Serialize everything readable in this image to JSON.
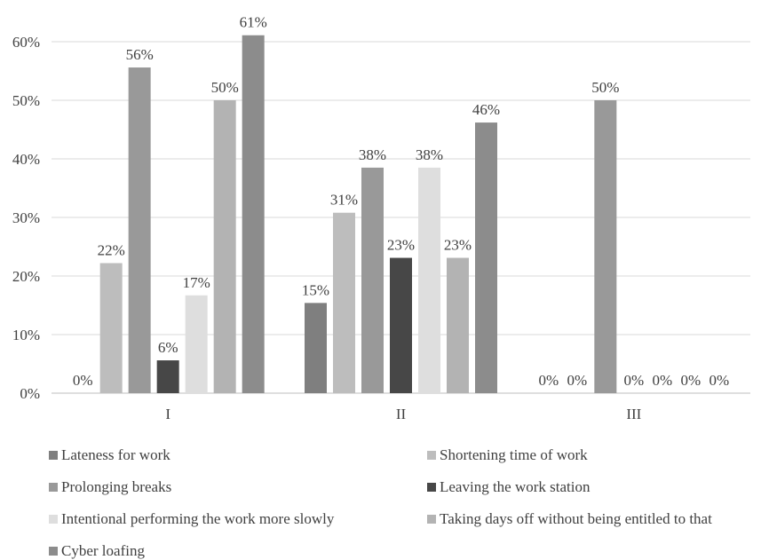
{
  "chart_data": {
    "type": "bar",
    "categories": [
      "I",
      "II",
      "III"
    ],
    "ylim": [
      0,
      60
    ],
    "yticks": [
      0,
      10,
      20,
      30,
      40,
      50,
      60
    ],
    "ytick_labels": [
      "0%",
      "10%",
      "20%",
      "30%",
      "40%",
      "50%",
      "60%"
    ],
    "grid": true,
    "legend_position": "bottom",
    "series": [
      {
        "name": "Lateness for work",
        "color": "#7f7f7f",
        "values": [
          0,
          15.4,
          0
        ],
        "labels": [
          "0%",
          "15%",
          "0%"
        ]
      },
      {
        "name": "Shortening time of work",
        "color": "#bdbdbd",
        "values": [
          22.2,
          30.8,
          0
        ],
        "labels": [
          "22%",
          "31%",
          "0%"
        ]
      },
      {
        "name": "Prolonging breaks",
        "color": "#999999",
        "values": [
          55.6,
          38.5,
          50
        ],
        "labels": [
          "56%",
          "38%",
          "50%"
        ]
      },
      {
        "name": "Leaving the work station",
        "color": "#474747",
        "values": [
          5.6,
          23.1,
          0
        ],
        "labels": [
          "6%",
          "23%",
          "0%"
        ]
      },
      {
        "name": "Intentional performing the work more slowly",
        "color": "#dedede",
        "values": [
          16.7,
          38.5,
          0
        ],
        "labels": [
          "17%",
          "38%",
          "0%"
        ]
      },
      {
        "name": "Taking days off without being entitled to that",
        "color": "#b3b3b3",
        "values": [
          50,
          23.1,
          0
        ],
        "labels": [
          "50%",
          "23%",
          "0%"
        ]
      },
      {
        "name": "Cyber loafing",
        "color": "#8c8c8c",
        "values": [
          61.1,
          46.2,
          0
        ],
        "labels": [
          "61%",
          "46%",
          "0%"
        ]
      }
    ]
  }
}
